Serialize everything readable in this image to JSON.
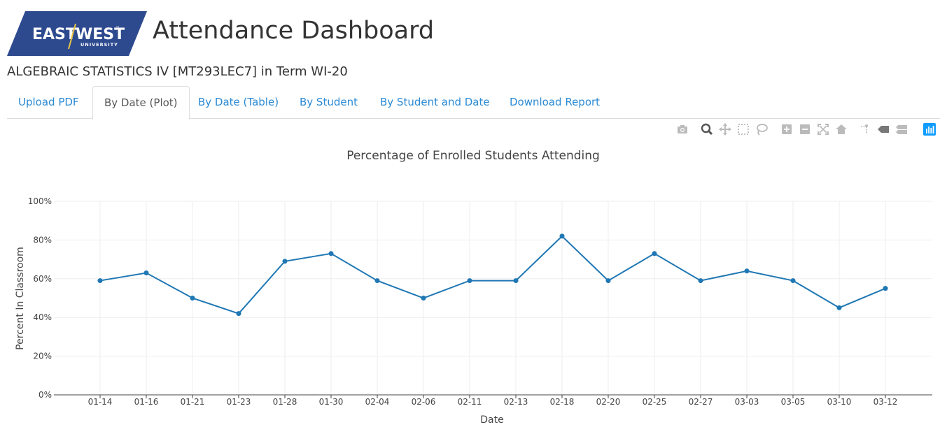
{
  "header": {
    "logo": {
      "word1": "EAST",
      "word2": "WEST",
      "sub": "UNIVERSITY",
      "tm": "™",
      "color": "#2e4a8f"
    },
    "title": "Attendance Dashboard",
    "course": "ALGEBRAIC STATISTICS IV [MT293LEC7] in Term WI-20"
  },
  "tabs": [
    {
      "label": "Upload PDF",
      "active": false
    },
    {
      "label": "By Date (Plot)",
      "active": true
    },
    {
      "label": "By Date (Table)",
      "active": false
    },
    {
      "label": "By Student",
      "active": false
    },
    {
      "label": "By Student and Date",
      "active": false
    },
    {
      "label": "Download Report",
      "active": false
    }
  ],
  "modebar": [
    "camera-icon",
    "zoom-icon",
    "pan-icon",
    "box-select-icon",
    "lasso-select-icon",
    "zoom-in-icon",
    "zoom-out-icon",
    "autoscale-icon",
    "reset-axes-icon",
    "spike-lines-icon",
    "hover-closest-icon",
    "hover-compare-icon",
    "plotly-logo-icon"
  ],
  "chart_data": {
    "type": "line",
    "title": "Percentage of Enrolled Students Attending",
    "xlabel": "Date",
    "ylabel": "Percent In Classroom",
    "categories": [
      "01-14",
      "01-16",
      "01-21",
      "01-23",
      "01-28",
      "01-30",
      "02-04",
      "02-06",
      "02-11",
      "02-13",
      "02-18",
      "02-20",
      "02-25",
      "02-27",
      "03-03",
      "03-05",
      "03-10",
      "03-12"
    ],
    "series": [
      {
        "values": [
          59,
          63,
          50,
          42,
          69,
          73,
          59,
          50,
          59,
          59,
          82,
          59,
          73,
          59,
          64,
          59,
          45,
          55
        ],
        "color": "#1f77b4"
      }
    ],
    "ylim": [
      0,
      100
    ],
    "yticks": [
      0,
      20,
      40,
      60,
      80,
      100
    ],
    "ytick_labels": [
      "0%",
      "20%",
      "40%",
      "60%",
      "80%",
      "100%"
    ],
    "grid": true,
    "legend": "none"
  }
}
